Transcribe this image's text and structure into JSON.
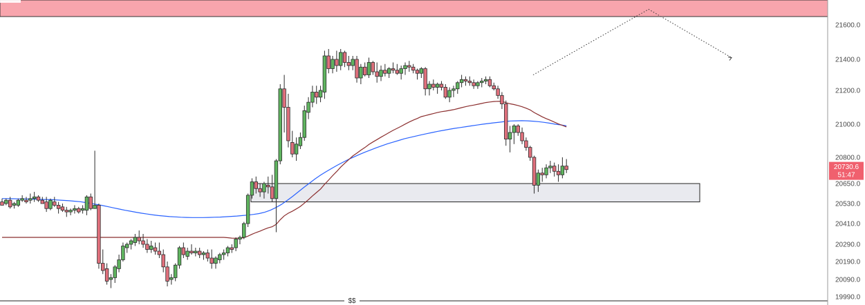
{
  "chart_data": {
    "type": "candlestick",
    "y_axis": {
      "ticks": [
        21600.0,
        21400.0,
        21200.0,
        21000.0,
        20800.0,
        20650.0,
        20530.0,
        20410.0,
        20290.0,
        20190.0,
        20090.0,
        19990.0
      ],
      "tick_labels": [
        "21600.0",
        "21400.0",
        "21200.0",
        "21000.0",
        "20800.0",
        "20650.0",
        "20530.0",
        "20410.0",
        "20290.0",
        "20190.0",
        "20090.0",
        "19990.0"
      ]
    },
    "last_price": {
      "value": 20730.6,
      "label": "20730.6",
      "countdown": "51:47"
    },
    "bottom_marker": "$$",
    "zones": [
      {
        "name": "resistance-zone",
        "y_low": 21640,
        "y_high": 21700,
        "color": "#f8a5ad"
      },
      {
        "name": "support-zone",
        "y_low": 20540,
        "y_high": 20650,
        "color": "#e9eaef"
      }
    ],
    "projection": {
      "style": "dotted",
      "points": [
        [
          21300
        ],
        [
          21690
        ],
        [
          21410
        ]
      ]
    },
    "candles": [
      [
        20540,
        20560,
        20520,
        20520
      ],
      [
        20530,
        20560,
        20520,
        20550
      ],
      [
        20550,
        20570,
        20500,
        20510
      ],
      [
        20520,
        20540,
        20500,
        20530
      ],
      [
        20520,
        20560,
        20510,
        20550
      ],
      [
        20550,
        20580,
        20540,
        20560
      ],
      [
        20550,
        20570,
        20530,
        20540
      ],
      [
        20550,
        20590,
        20530,
        20560
      ],
      [
        20560,
        20600,
        20540,
        20570
      ],
      [
        20570,
        20580,
        20540,
        20550
      ],
      [
        20550,
        20570,
        20530,
        20530
      ],
      [
        20540,
        20570,
        20480,
        20500
      ],
      [
        20500,
        20560,
        20490,
        20550
      ],
      [
        20540,
        20570,
        20510,
        20520
      ],
      [
        20520,
        20540,
        20470,
        20500
      ],
      [
        20510,
        20530,
        20480,
        20490
      ],
      [
        20490,
        20510,
        20450,
        20480
      ],
      [
        20480,
        20500,
        20460,
        20490
      ],
      [
        20490,
        20520,
        20470,
        20500
      ],
      [
        20500,
        20510,
        20470,
        20480
      ],
      [
        20490,
        20520,
        20470,
        20500
      ],
      [
        20490,
        20580,
        20460,
        20570
      ],
      [
        20570,
        20590,
        20490,
        20500
      ],
      [
        20500,
        20840,
        20500,
        20520
      ],
      [
        20520,
        20530,
        20150,
        20180
      ],
      [
        20180,
        20260,
        20120,
        20140
      ],
      [
        20150,
        20180,
        20060,
        20080
      ],
      [
        20090,
        20120,
        20040,
        20100
      ],
      [
        20100,
        20170,
        20070,
        20160
      ],
      [
        20150,
        20230,
        20130,
        20200
      ],
      [
        20200,
        20300,
        20190,
        20280
      ],
      [
        20270,
        20300,
        20240,
        20290
      ],
      [
        20290,
        20320,
        20260,
        20310
      ],
      [
        20300,
        20350,
        20280,
        20330
      ],
      [
        20330,
        20370,
        20290,
        20310
      ],
      [
        20310,
        20350,
        20270,
        20290
      ],
      [
        20290,
        20320,
        20240,
        20260
      ],
      [
        20260,
        20310,
        20240,
        20280
      ],
      [
        20270,
        20300,
        20230,
        20250
      ],
      [
        20250,
        20300,
        20210,
        20230
      ],
      [
        20230,
        20260,
        20130,
        20160
      ],
      [
        20160,
        20190,
        20050,
        20080
      ],
      [
        20090,
        20120,
        20060,
        20100
      ],
      [
        20100,
        20180,
        20080,
        20170
      ],
      [
        20170,
        20280,
        20150,
        20270
      ],
      [
        20270,
        20300,
        20210,
        20230
      ],
      [
        20220,
        20270,
        20200,
        20250
      ],
      [
        20250,
        20290,
        20230,
        20240
      ],
      [
        20240,
        20270,
        20220,
        20250
      ],
      [
        20250,
        20270,
        20210,
        20230
      ],
      [
        20230,
        20250,
        20200,
        20240
      ],
      [
        20240,
        20260,
        20190,
        20210
      ],
      [
        20210,
        20260,
        20150,
        20180
      ],
      [
        20180,
        20220,
        20150,
        20210
      ],
      [
        20200,
        20240,
        20180,
        20230
      ],
      [
        20230,
        20260,
        20200,
        20240
      ],
      [
        20240,
        20280,
        20220,
        20270
      ],
      [
        20270,
        20290,
        20240,
        20260
      ],
      [
        20270,
        20330,
        20250,
        20320
      ],
      [
        20320,
        20340,
        20290,
        20330
      ],
      [
        20330,
        20420,
        20320,
        20410
      ],
      [
        20410,
        20590,
        20390,
        20580
      ],
      [
        20580,
        20680,
        20560,
        20660
      ],
      [
        20660,
        20690,
        20590,
        20620
      ],
      [
        20620,
        20650,
        20570,
        20600
      ],
      [
        20600,
        20660,
        20560,
        20650
      ],
      [
        20640,
        20690,
        20590,
        20630
      ],
      [
        20630,
        20700,
        20540,
        20560
      ],
      [
        20560,
        20790,
        20360,
        20780
      ],
      [
        20780,
        21240,
        20760,
        21210
      ],
      [
        21210,
        21300,
        20950,
        21100
      ],
      [
        21100,
        21180,
        20860,
        20900
      ],
      [
        20890,
        20960,
        20800,
        20820
      ],
      [
        20820,
        20920,
        20780,
        20880
      ],
      [
        20870,
        20950,
        20850,
        20920
      ],
      [
        20920,
        21110,
        20900,
        21080
      ],
      [
        21070,
        21160,
        21030,
        21130
      ],
      [
        21130,
        21230,
        21100,
        21190
      ],
      [
        21190,
        21230,
        21120,
        21160
      ],
      [
        21160,
        21230,
        21130,
        21200
      ],
      [
        21190,
        21450,
        21150,
        21420
      ],
      [
        21420,
        21460,
        21310,
        21340
      ],
      [
        21340,
        21420,
        21310,
        21400
      ],
      [
        21400,
        21450,
        21320,
        21360
      ],
      [
        21360,
        21460,
        21330,
        21440
      ],
      [
        21440,
        21450,
        21350,
        21380
      ],
      [
        21380,
        21420,
        21330,
        21360
      ],
      [
        21360,
        21420,
        21330,
        21400
      ],
      [
        21400,
        21420,
        21250,
        21280
      ],
      [
        21280,
        21370,
        21240,
        21350
      ],
      [
        21350,
        21380,
        21290,
        21300
      ],
      [
        21300,
        21410,
        21280,
        21380
      ],
      [
        21380,
        21390,
        21300,
        21320
      ],
      [
        21320,
        21380,
        21250,
        21290
      ],
      [
        21290,
        21360,
        21260,
        21330
      ],
      [
        21330,
        21370,
        21290,
        21310
      ],
      [
        21310,
        21350,
        21280,
        21340
      ],
      [
        21340,
        21380,
        21310,
        21330
      ],
      [
        21330,
        21370,
        21300,
        21310
      ],
      [
        21310,
        21360,
        21270,
        21340
      ],
      [
        21340,
        21380,
        21300,
        21360
      ],
      [
        21360,
        21390,
        21320,
        21350
      ],
      [
        21350,
        21370,
        21310,
        21330
      ],
      [
        21330,
        21340,
        21270,
        21310
      ],
      [
        21310,
        21350,
        21280,
        21340
      ],
      [
        21340,
        21350,
        21170,
        21210
      ],
      [
        21210,
        21260,
        21170,
        21240
      ],
      [
        21240,
        21270,
        21200,
        21220
      ],
      [
        21220,
        21250,
        21180,
        21240
      ],
      [
        21240,
        21260,
        21200,
        21220
      ],
      [
        21220,
        21240,
        21150,
        21160
      ],
      [
        21160,
        21220,
        21130,
        21200
      ],
      [
        21200,
        21230,
        21160,
        21210
      ],
      [
        21210,
        21260,
        21180,
        21250
      ],
      [
        21250,
        21300,
        21220,
        21270
      ],
      [
        21270,
        21290,
        21230,
        21260
      ],
      [
        21260,
        21290,
        21230,
        21250
      ],
      [
        21250,
        21270,
        21210,
        21230
      ],
      [
        21230,
        21260,
        21210,
        21250
      ],
      [
        21250,
        21280,
        21220,
        21260
      ],
      [
        21260,
        21290,
        21240,
        21270
      ],
      [
        21270,
        21290,
        21220,
        21230
      ],
      [
        21230,
        21250,
        21200,
        21210
      ],
      [
        21210,
        21230,
        21150,
        21170
      ],
      [
        21170,
        21190,
        21090,
        21120
      ],
      [
        21120,
        21140,
        20870,
        20910
      ],
      [
        20910,
        20990,
        20830,
        20950
      ],
      [
        20950,
        21000,
        20880,
        20990
      ],
      [
        20990,
        21000,
        20930,
        20950
      ],
      [
        20950,
        20980,
        20880,
        20900
      ],
      [
        20900,
        20920,
        20840,
        20860
      ],
      [
        20860,
        20870,
        20780,
        20800
      ],
      [
        20800,
        20810,
        20590,
        20640
      ],
      [
        20640,
        20730,
        20600,
        20710
      ],
      [
        20710,
        20740,
        20660,
        20700
      ],
      [
        20700,
        20760,
        20680,
        20740
      ],
      [
        20740,
        20780,
        20710,
        20750
      ],
      [
        20750,
        20770,
        20690,
        20720
      ],
      [
        20720,
        20760,
        20660,
        20700
      ],
      [
        20700,
        20800,
        20680,
        20750
      ],
      [
        20750,
        20790,
        20710,
        20730
      ]
    ],
    "indicators": [
      {
        "type": "moving-average",
        "color": "#2962ff",
        "values": [
          20560,
          20560,
          20559,
          20558,
          20558,
          20557,
          20556,
          20555,
          20554,
          20553,
          20551,
          20549,
          20547,
          20544,
          20541,
          20536,
          20530,
          20524,
          20518,
          20511,
          20504,
          20497,
          20490,
          20484,
          20478,
          20472,
          20467,
          20462,
          20458,
          20455,
          20452,
          20450,
          20448,
          20447,
          20446,
          20446,
          20446,
          20447,
          20448,
          20449,
          20451,
          20453,
          20455,
          20458,
          20461,
          20465,
          20470,
          20478,
          20490,
          20506,
          20525,
          20548,
          20573,
          20600,
          20627,
          20652,
          20676,
          20698,
          20718,
          20737,
          20755,
          20772,
          20788,
          20803,
          20818,
          20832,
          20845,
          20858,
          20870,
          20882,
          20892,
          20902,
          20912,
          20920,
          20928,
          20936,
          20943,
          20950,
          20957,
          20963,
          20969,
          20975,
          20980,
          20985,
          20990,
          20995,
          21000,
          21004,
          21008,
          21012,
          21016,
          21019,
          21020,
          21021,
          21020,
          21018,
          21015,
          21011,
          21006,
          21000,
          20996,
          20990
        ]
      }
    ]
  }
}
